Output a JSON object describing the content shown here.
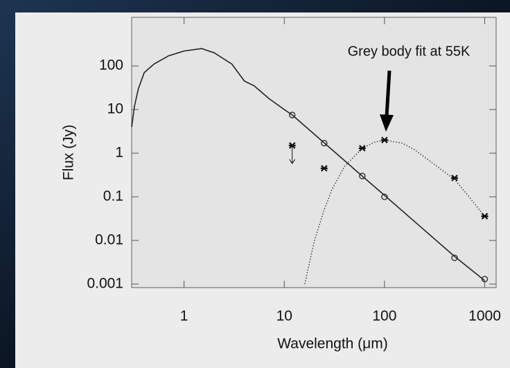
{
  "chart_data": {
    "type": "line",
    "xlabel": "Wavelength (μm)",
    "ylabel": "Flux (Jy)",
    "annotation": "Grey body fit at 55K",
    "log_x": true,
    "log_y": true,
    "xlim": [
      0.3,
      1300
    ],
    "ylim": [
      0.00083,
      1300
    ],
    "xticks": [
      1,
      10,
      100,
      1000
    ],
    "yticks": [
      100,
      10,
      1,
      0.1,
      0.01,
      0.001
    ],
    "series": [
      {
        "mode": "solid",
        "color": "#222222",
        "x": [
          0.3,
          0.32,
          0.35,
          0.4,
          0.5,
          0.7,
          1,
          1.5,
          2,
          3,
          4,
          5,
          7,
          10,
          12,
          20,
          50,
          100,
          200,
          500,
          1000
        ],
        "values": [
          4,
          12,
          30,
          70,
          110,
          170,
          220,
          250,
          200,
          110,
          45,
          35,
          18,
          10,
          7.5,
          2.7,
          0.43,
          0.108,
          0.027,
          0.0043,
          0.0012
        ]
      },
      {
        "mode": "dotted",
        "color": "#333333",
        "x": [
          16,
          20,
          25,
          30,
          40,
          60,
          80,
          100,
          150,
          200,
          300,
          500,
          700,
          1000
        ],
        "values": [
          0.001,
          0.01,
          0.05,
          0.15,
          0.5,
          1.3,
          1.8,
          2,
          1.7,
          1.2,
          0.6,
          0.25,
          0.1,
          0.035
        ]
      },
      {
        "mode": "circles",
        "color": "#222222",
        "x": [
          12,
          25,
          60,
          100,
          500,
          1000
        ],
        "values": [
          7.5,
          1.7,
          0.3,
          0.1,
          0.004,
          0.0013
        ]
      },
      {
        "mode": "stars",
        "color": "#111111",
        "x": [
          12,
          25,
          60,
          100,
          500,
          1000
        ],
        "values": [
          1.5,
          0.45,
          1.3,
          2,
          0.27,
          0.036
        ],
        "upper_limit": [
          true,
          false,
          false,
          false,
          false,
          false
        ]
      }
    ]
  }
}
